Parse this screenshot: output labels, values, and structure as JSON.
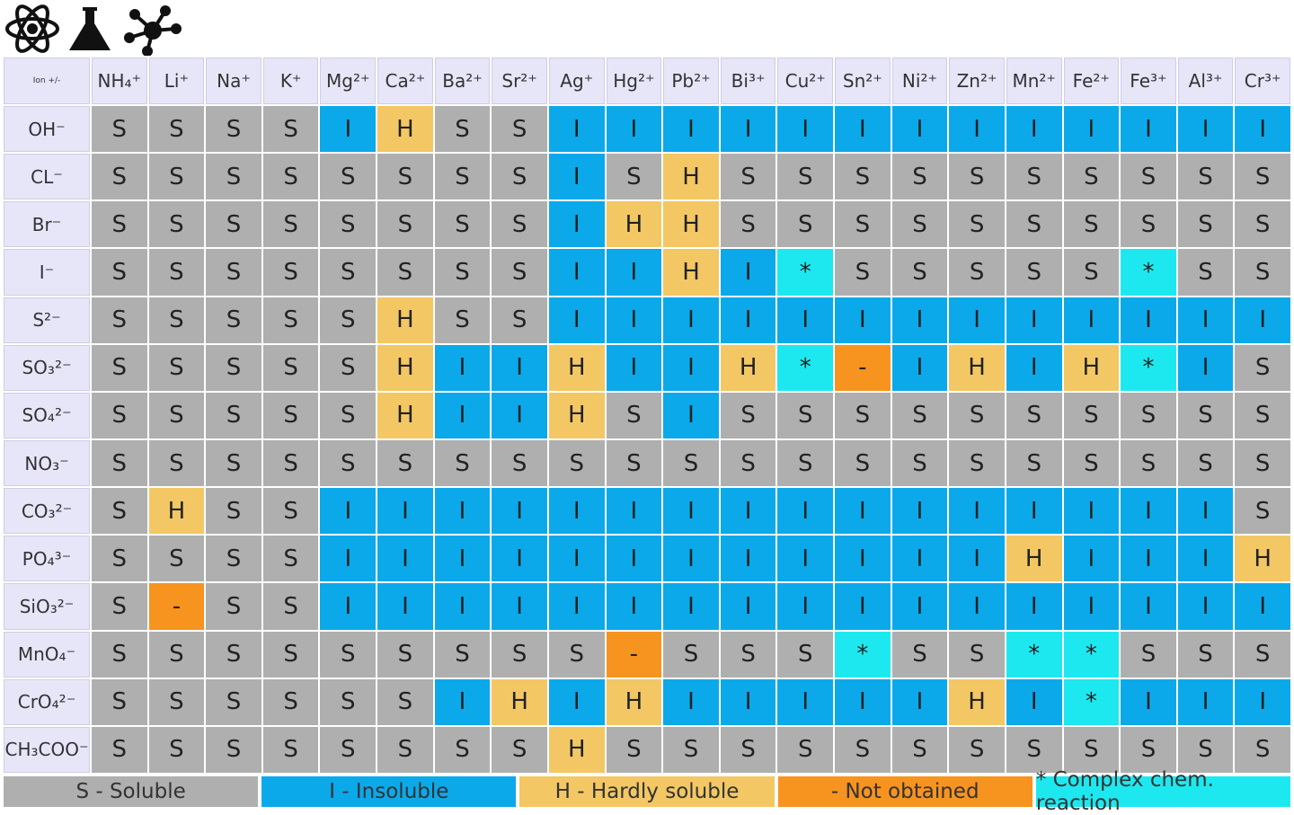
{
  "table": {
    "corner": "Ion +/-",
    "columns": [
      "NH₄⁺",
      "Li⁺",
      "Na⁺",
      "K⁺",
      "Mg²⁺",
      "Ca²⁺",
      "Ba²⁺",
      "Sr²⁺",
      "Ag⁺",
      "Hg²⁺",
      "Pb²⁺",
      "Bi³⁺",
      "Cu²⁺",
      "Sn²⁺",
      "Ni²⁺",
      "Zn²⁺",
      "Mn²⁺",
      "Fe²⁺",
      "Fe³⁺",
      "Al³⁺",
      "Cr³⁺"
    ],
    "rows": [
      {
        "ion": "OH⁻",
        "cells": [
          "S",
          "S",
          "S",
          "S",
          "I",
          "H",
          "S",
          "S",
          "I",
          "I",
          "I",
          "I",
          "I",
          "I",
          "I",
          "I",
          "I",
          "I",
          "I",
          "I",
          "I"
        ]
      },
      {
        "ion": "CL⁻",
        "cells": [
          "S",
          "S",
          "S",
          "S",
          "S",
          "S",
          "S",
          "S",
          "I",
          "S",
          "H",
          "S",
          "S",
          "S",
          "S",
          "S",
          "S",
          "S",
          "S",
          "S",
          "S"
        ]
      },
      {
        "ion": "Br⁻",
        "cells": [
          "S",
          "S",
          "S",
          "S",
          "S",
          "S",
          "S",
          "S",
          "I",
          "H",
          "H",
          "S",
          "S",
          "S",
          "S",
          "S",
          "S",
          "S",
          "S",
          "S",
          "S"
        ]
      },
      {
        "ion": "I⁻",
        "cells": [
          "S",
          "S",
          "S",
          "S",
          "S",
          "S",
          "S",
          "S",
          "I",
          "I",
          "H",
          "I",
          "*",
          "S",
          "S",
          "S",
          "S",
          "S",
          "*",
          "S",
          "S"
        ]
      },
      {
        "ion": "S²⁻",
        "cells": [
          "S",
          "S",
          "S",
          "S",
          "S",
          "H",
          "S",
          "S",
          "I",
          "I",
          "I",
          "I",
          "I",
          "I",
          "I",
          "I",
          "I",
          "I",
          "I",
          "I",
          "I"
        ]
      },
      {
        "ion": "SO₃²⁻",
        "cells": [
          "S",
          "S",
          "S",
          "S",
          "S",
          "H",
          "I",
          "I",
          "H",
          "I",
          "I",
          "H",
          "*",
          "-",
          "I",
          "H",
          "I",
          "H",
          "*",
          "I",
          "S"
        ]
      },
      {
        "ion": "SO₄²⁻",
        "cells": [
          "S",
          "S",
          "S",
          "S",
          "S",
          "H",
          "I",
          "I",
          "H",
          "S",
          "I",
          "S",
          "S",
          "S",
          "S",
          "S",
          "S",
          "S",
          "S",
          "S",
          "S"
        ]
      },
      {
        "ion": "NO₃⁻",
        "cells": [
          "S",
          "S",
          "S",
          "S",
          "S",
          "S",
          "S",
          "S",
          "S",
          "S",
          "S",
          "S",
          "S",
          "S",
          "S",
          "S",
          "S",
          "S",
          "S",
          "S",
          "S"
        ]
      },
      {
        "ion": "CO₃²⁻",
        "cells": [
          "S",
          "H",
          "S",
          "S",
          "I",
          "I",
          "I",
          "I",
          "I",
          "I",
          "I",
          "I",
          "I",
          "I",
          "I",
          "I",
          "I",
          "I",
          "I",
          "I",
          "S"
        ]
      },
      {
        "ion": "PO₄³⁻",
        "cells": [
          "S",
          "S",
          "S",
          "S",
          "I",
          "I",
          "I",
          "I",
          "I",
          "I",
          "I",
          "I",
          "I",
          "I",
          "I",
          "I",
          "H",
          "I",
          "I",
          "I",
          "H"
        ]
      },
      {
        "ion": "SiO₃²⁻",
        "cells": [
          "S",
          "-",
          "S",
          "S",
          "I",
          "I",
          "I",
          "I",
          "I",
          "I",
          "I",
          "I",
          "I",
          "I",
          "I",
          "I",
          "I",
          "I",
          "I",
          "I",
          "I"
        ]
      },
      {
        "ion": "MnO₄⁻",
        "cells": [
          "S",
          "S",
          "S",
          "S",
          "S",
          "S",
          "S",
          "S",
          "S",
          "-",
          "S",
          "S",
          "S",
          "*",
          "S",
          "S",
          "*",
          "*",
          "S",
          "S",
          "S"
        ]
      },
      {
        "ion": "CrO₄²⁻",
        "cells": [
          "S",
          "S",
          "S",
          "S",
          "S",
          "S",
          "I",
          "H",
          "I",
          "H",
          "I",
          "I",
          "I",
          "I",
          "I",
          "H",
          "I",
          "*",
          "I",
          "I",
          "I"
        ]
      },
      {
        "ion": "CH₃COO⁻",
        "cells": [
          "S",
          "S",
          "S",
          "S",
          "S",
          "S",
          "S",
          "S",
          "H",
          "S",
          "S",
          "S",
          "S",
          "S",
          "S",
          "S",
          "S",
          "S",
          "S",
          "S",
          "S"
        ]
      }
    ]
  },
  "legend": [
    {
      "code": "S",
      "label": "S - Soluble",
      "color": "#afafaf"
    },
    {
      "code": "I",
      "label": "I - Insoluble",
      "color": "#0ba9ea"
    },
    {
      "code": "H",
      "label": "H - Hardly soluble",
      "color": "#f3c764"
    },
    {
      "code": "-",
      "label": "- Not obtained",
      "color": "#f7931f"
    },
    {
      "code": "*",
      "label": "* Complex chem. reaction",
      "color": "#1ee8ef"
    }
  ]
}
